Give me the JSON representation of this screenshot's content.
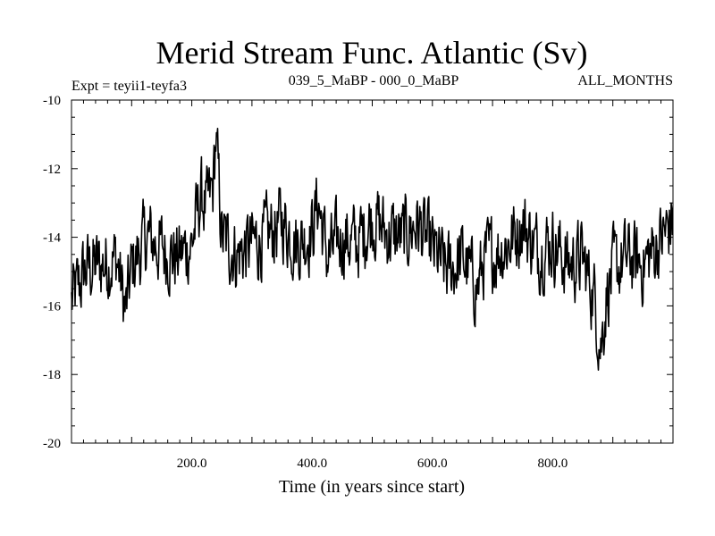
{
  "chart_data": {
    "type": "line",
    "title": "Merid Stream Func. Atlantic (Sv)",
    "subtitle_left": "Expt = teyii1-teyfa3",
    "subtitle_center": "039_5_MaBP - 000_0_MaBP",
    "subtitle_right": "ALL_MONTHS",
    "xlabel": "Time (in years since start)",
    "ylabel": "",
    "xlim": [
      0,
      1000
    ],
    "ylim": [
      -20,
      -10
    ],
    "x_ticks": [
      200,
      400,
      600,
      800
    ],
    "x_tick_labels": [
      "200.0",
      "400.0",
      "600.0",
      "800.0"
    ],
    "y_ticks": [
      -20,
      -18,
      -16,
      -14,
      -12,
      -10
    ],
    "y_tick_labels": [
      "-20",
      "-18",
      "-16",
      "-14",
      "-12",
      "-10"
    ],
    "grid": false,
    "series": [
      {
        "name": "Atlantic meridional stream function",
        "x": [
          0,
          25,
          50,
          75,
          90,
          100,
          125,
          150,
          175,
          200,
          215,
          225,
          235,
          240,
          250,
          275,
          300,
          325,
          350,
          375,
          400,
          410,
          425,
          450,
          475,
          500,
          525,
          550,
          575,
          600,
          625,
          650,
          675,
          685,
          700,
          725,
          750,
          775,
          800,
          825,
          850,
          870,
          880,
          890,
          900,
          925,
          950,
          975,
          1000
        ],
        "y": [
          -15.9,
          -14.9,
          -14.8,
          -14.6,
          -16.2,
          -14.9,
          -14.0,
          -14.3,
          -14.6,
          -14.2,
          -12.8,
          -13.2,
          -12.6,
          -11.1,
          -14.0,
          -14.5,
          -14.2,
          -14.0,
          -13.5,
          -14.2,
          -13.8,
          -12.9,
          -14.6,
          -14.0,
          -14.2,
          -13.4,
          -13.9,
          -14.0,
          -13.6,
          -14.4,
          -15.0,
          -14.6,
          -15.5,
          -14.7,
          -14.5,
          -14.2,
          -13.6,
          -14.4,
          -14.1,
          -14.8,
          -14.6,
          -15.8,
          -17.2,
          -15.6,
          -15.0,
          -14.6,
          -14.8,
          -14.2,
          -13.5
        ]
      }
    ]
  }
}
